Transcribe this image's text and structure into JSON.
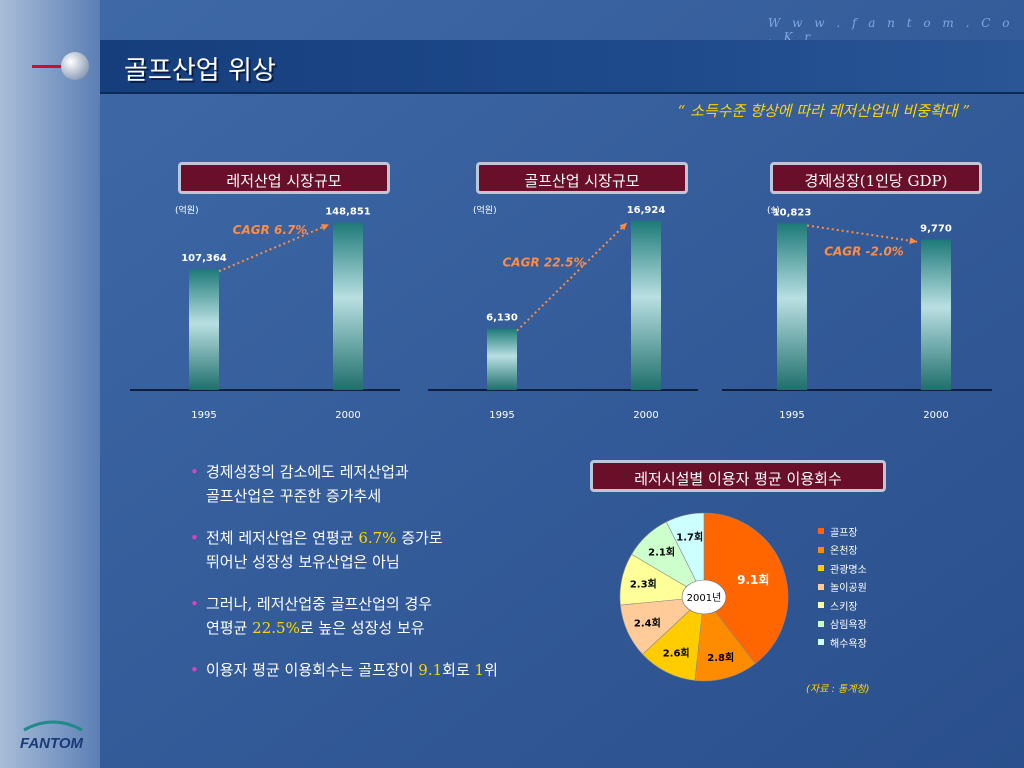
{
  "header": {
    "url": "W w w . f a n t o m . C o . K r",
    "title": "골프산업 위상",
    "subtitle": "“ 소득수준 향상에 따라 레저산업내 비중확대 ”"
  },
  "logo": {
    "text": "FANTOM"
  },
  "chart_data": [
    {
      "type": "bar",
      "title": "레저산업 시장규모",
      "unit": "(억원)",
      "categories": [
        "1995",
        "2000"
      ],
      "values": [
        107364,
        148851
      ],
      "value_labels": [
        "107,364",
        "148,851"
      ],
      "annotation": "CAGR 6.7%",
      "ylim": [
        0,
        160000
      ]
    },
    {
      "type": "bar",
      "title": "골프산업 시장규모",
      "unit": "(억원)",
      "categories": [
        "1995",
        "2000"
      ],
      "values": [
        6130,
        16924
      ],
      "value_labels": [
        "6,130",
        "16,924"
      ],
      "annotation": "CAGR 22.5%",
      "ylim": [
        0,
        18000
      ]
    },
    {
      "type": "bar",
      "title": "경제성장(1인당 GDP)",
      "unit": "($)",
      "categories": [
        "1995",
        "2000"
      ],
      "values": [
        10823,
        9770
      ],
      "value_labels": [
        "10,823",
        "9,770"
      ],
      "annotation": "CAGR -2.0%",
      "ylim": [
        0,
        11700
      ]
    },
    {
      "type": "pie",
      "title": "레저시설별 이용자 평균 이용회수",
      "center_label": "2001년",
      "categories": [
        "골프장",
        "온천장",
        "관광명소",
        "놀이공원",
        "스키장",
        "삼림욕장",
        "해수욕장"
      ],
      "values": [
        9.1,
        2.8,
        2.6,
        2.4,
        2.3,
        2.1,
        1.7
      ],
      "value_labels": [
        "9.1회",
        "2.8회",
        "2.6회",
        "2.4회",
        "2.3회",
        "2.1회",
        "1.7회"
      ],
      "colors": [
        "#ff6600",
        "#ff8c00",
        "#ffcc00",
        "#ffcc99",
        "#ffff99",
        "#ccffcc",
        "#ccffff"
      ],
      "source": "(자료 : 통계청)"
    }
  ],
  "bullets": [
    {
      "line1": "경제성장의 감소에도 레저산업과",
      "line2": "골프산업은 꾸준한 증가추세"
    },
    {
      "line1a": "전체 레저산업은 연평균 ",
      "line1b": "6.7%",
      "line1c": " 증가로",
      "line2": "뛰어난 성장성 보유산업은 아님"
    },
    {
      "line1": "그러나, 레저산업중 골프산업의 경우",
      "line2a": "연평균 ",
      "line2b": "22.5%",
      "line2c": "로 높은 성장성 보유"
    },
    {
      "line1a": "이용자 평균 이용회수는 골프장이 ",
      "line1b": "9.1",
      "line1c": "회로 ",
      "line1d": "1",
      "line1e": "위"
    }
  ],
  "colors": {
    "background": "#2f5a98",
    "header_box": "#6a0f2a",
    "highlight": "#ffd400",
    "annotation": "#ff8c42"
  }
}
